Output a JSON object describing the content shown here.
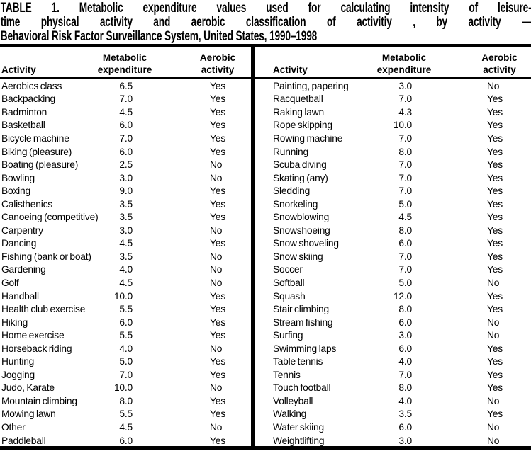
{
  "title": {
    "lines": [
      "TABLE 1. Metabolic expenditure values used for calculating intensity of leisure-",
      "time physical activity and aerobic classification of activitiy , by activity —",
      "Behavioral Risk Factor Surveillance System, United States, 1990–1998"
    ]
  },
  "column_headers": {
    "activity": "Activity",
    "metabolic_line1": "Metabolic",
    "metabolic_line2": "expenditure",
    "aerobic_line1": "Aerobic",
    "aerobic_line2": "activity"
  },
  "colors": {
    "text_color": "#000000",
    "background_color": "#ffffff",
    "rule_color": "#000000"
  },
  "left_rows": [
    {
      "activity": "Aerobics class",
      "metabolic_expenditure": "6.5",
      "aerobic_activity": "Yes"
    },
    {
      "activity": "Backpacking",
      "metabolic_expenditure": "7.0",
      "aerobic_activity": "Yes"
    },
    {
      "activity": "Badminton",
      "metabolic_expenditure": "4.5",
      "aerobic_activity": "Yes"
    },
    {
      "activity": "Basketball",
      "metabolic_expenditure": "6.0",
      "aerobic_activity": "Yes"
    },
    {
      "activity": "Bicycle machine",
      "metabolic_expenditure": "7.0",
      "aerobic_activity": "Yes"
    },
    {
      "activity": "Biking (pleasure)",
      "metabolic_expenditure": "6.0",
      "aerobic_activity": "Yes"
    },
    {
      "activity": "Boating (pleasure)",
      "metabolic_expenditure": "2.5",
      "aerobic_activity": "No"
    },
    {
      "activity": "Bowling",
      "metabolic_expenditure": "3.0",
      "aerobic_activity": "No"
    },
    {
      "activity": "Boxing",
      "metabolic_expenditure": "9.0",
      "aerobic_activity": "Yes"
    },
    {
      "activity": "Calisthenics",
      "metabolic_expenditure": "3.5",
      "aerobic_activity": "Yes"
    },
    {
      "activity": "Canoeing (competitive)",
      "metabolic_expenditure": "3.5",
      "aerobic_activity": "Yes"
    },
    {
      "activity": "Carpentry",
      "metabolic_expenditure": "3.0",
      "aerobic_activity": "No"
    },
    {
      "activity": "Dancing",
      "metabolic_expenditure": "4.5",
      "aerobic_activity": "Yes"
    },
    {
      "activity": "Fishing (bank or boat)",
      "metabolic_expenditure": "3.5",
      "aerobic_activity": "No"
    },
    {
      "activity": "Gardening",
      "metabolic_expenditure": "4.0",
      "aerobic_activity": "No"
    },
    {
      "activity": "Golf",
      "metabolic_expenditure": "4.5",
      "aerobic_activity": "No"
    },
    {
      "activity": "Handball",
      "metabolic_expenditure": "10.0",
      "aerobic_activity": "Yes"
    },
    {
      "activity": "Health club exercise",
      "metabolic_expenditure": "5.5",
      "aerobic_activity": "Yes"
    },
    {
      "activity": "Hiking",
      "metabolic_expenditure": "6.0",
      "aerobic_activity": "Yes"
    },
    {
      "activity": "Home exercise",
      "metabolic_expenditure": "5.5",
      "aerobic_activity": "Yes"
    },
    {
      "activity": "Horseback riding",
      "metabolic_expenditure": "4.0",
      "aerobic_activity": "No"
    },
    {
      "activity": "Hunting",
      "metabolic_expenditure": "5.0",
      "aerobic_activity": "Yes"
    },
    {
      "activity": "Jogging",
      "metabolic_expenditure": "7.0",
      "aerobic_activity": "Yes"
    },
    {
      "activity": "Judo, Karate",
      "metabolic_expenditure": "10.0",
      "aerobic_activity": "No"
    },
    {
      "activity": "Mountain climbing",
      "metabolic_expenditure": "8.0",
      "aerobic_activity": "Yes"
    },
    {
      "activity": "Mowing lawn",
      "metabolic_expenditure": "5.5",
      "aerobic_activity": "Yes"
    },
    {
      "activity": "Other",
      "metabolic_expenditure": "4.5",
      "aerobic_activity": "No"
    },
    {
      "activity": "Paddleball",
      "metabolic_expenditure": "6.0",
      "aerobic_activity": "Yes"
    }
  ],
  "right_rows": [
    {
      "activity": "Painting, papering",
      "metabolic_expenditure": "3.0",
      "aerobic_activity": "No"
    },
    {
      "activity": "Racquetball",
      "metabolic_expenditure": "7.0",
      "aerobic_activity": "Yes"
    },
    {
      "activity": "Raking lawn",
      "metabolic_expenditure": "4.3",
      "aerobic_activity": "Yes"
    },
    {
      "activity": "Rope skipping",
      "metabolic_expenditure": "10.0",
      "aerobic_activity": "Yes"
    },
    {
      "activity": "Rowing machine",
      "metabolic_expenditure": "7.0",
      "aerobic_activity": "Yes"
    },
    {
      "activity": "Running",
      "metabolic_expenditure": "8.0",
      "aerobic_activity": "Yes"
    },
    {
      "activity": "Scuba diving",
      "metabolic_expenditure": "7.0",
      "aerobic_activity": "Yes"
    },
    {
      "activity": "Skating (any)",
      "metabolic_expenditure": "7.0",
      "aerobic_activity": "Yes"
    },
    {
      "activity": "Sledding",
      "metabolic_expenditure": "7.0",
      "aerobic_activity": "Yes"
    },
    {
      "activity": "Snorkeling",
      "metabolic_expenditure": "5.0",
      "aerobic_activity": "Yes"
    },
    {
      "activity": "Snowblowing",
      "metabolic_expenditure": "4.5",
      "aerobic_activity": "Yes"
    },
    {
      "activity": "Snowshoeing",
      "metabolic_expenditure": "8.0",
      "aerobic_activity": "Yes"
    },
    {
      "activity": "Snow shoveling",
      "metabolic_expenditure": "6.0",
      "aerobic_activity": "Yes"
    },
    {
      "activity": "Snow skiing",
      "metabolic_expenditure": "7.0",
      "aerobic_activity": "Yes"
    },
    {
      "activity": "Soccer",
      "metabolic_expenditure": "7.0",
      "aerobic_activity": "Yes"
    },
    {
      "activity": "Softball",
      "metabolic_expenditure": "5.0",
      "aerobic_activity": "No"
    },
    {
      "activity": "Squash",
      "metabolic_expenditure": "12.0",
      "aerobic_activity": "Yes"
    },
    {
      "activity": "Stair climbing",
      "metabolic_expenditure": "8.0",
      "aerobic_activity": "Yes"
    },
    {
      "activity": "Stream fishing",
      "metabolic_expenditure": "6.0",
      "aerobic_activity": "No"
    },
    {
      "activity": "Surfing",
      "metabolic_expenditure": "3.0",
      "aerobic_activity": "No"
    },
    {
      "activity": "Swimming laps",
      "metabolic_expenditure": "6.0",
      "aerobic_activity": "Yes"
    },
    {
      "activity": "Table tennis",
      "metabolic_expenditure": "4.0",
      "aerobic_activity": "Yes"
    },
    {
      "activity": "Tennis",
      "metabolic_expenditure": "7.0",
      "aerobic_activity": "Yes"
    },
    {
      "activity": "Touch football",
      "metabolic_expenditure": "8.0",
      "aerobic_activity": "Yes"
    },
    {
      "activity": "Volleyball",
      "metabolic_expenditure": "4.0",
      "aerobic_activity": "No"
    },
    {
      "activity": "Walking",
      "metabolic_expenditure": "3.5",
      "aerobic_activity": "Yes"
    },
    {
      "activity": "Water skiing",
      "metabolic_expenditure": "6.0",
      "aerobic_activity": "No"
    },
    {
      "activity": "Weightlifting",
      "metabolic_expenditure": "3.0",
      "aerobic_activity": "No"
    }
  ]
}
